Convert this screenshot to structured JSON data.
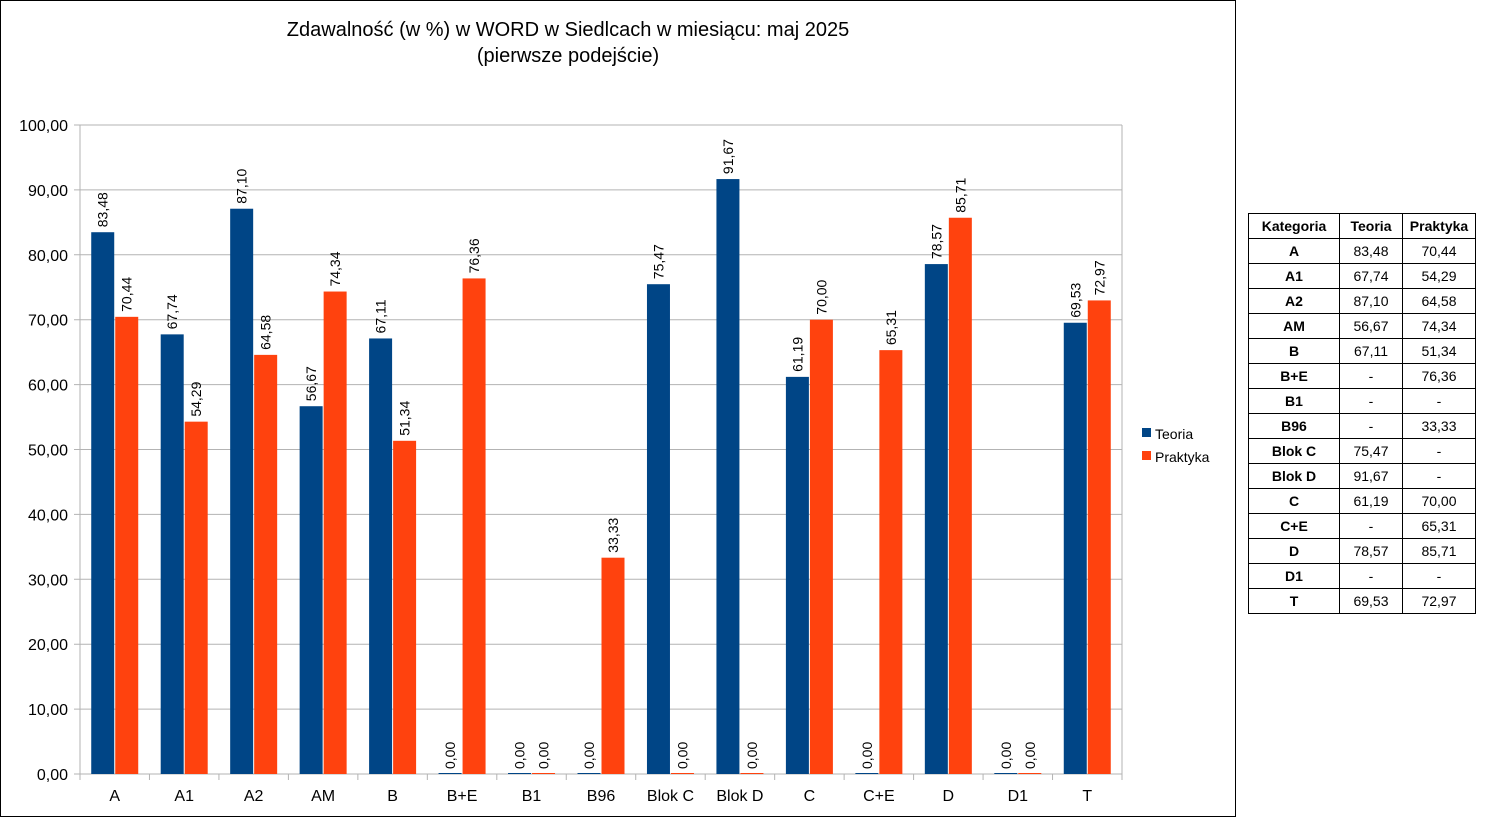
{
  "chart_data": {
    "type": "bar",
    "title": [
      "Zdawalność (w %) w WORD w Siedlcach w miesiącu: maj 2025",
      "(pierwsze podejście)"
    ],
    "categories": [
      "A",
      "A1",
      "A2",
      "AM",
      "B",
      "B+E",
      "B1",
      "B96",
      "Blok C",
      "Blok D",
      "C",
      "C+E",
      "D",
      "D1",
      "T"
    ],
    "series": [
      {
        "name": "Teoria",
        "color": "#004586",
        "values": [
          83.48,
          67.74,
          87.1,
          56.67,
          67.11,
          0.0,
          0.0,
          0.0,
          75.47,
          91.67,
          61.19,
          0.0,
          78.57,
          0.0,
          69.53
        ],
        "labels": [
          "83,48",
          "67,74",
          "87,10",
          "56,67",
          "67,11",
          "0,00",
          "0,00",
          "0,00",
          "75,47",
          "91,67",
          "61,19",
          "0,00",
          "78,57",
          "0,00",
          "69,53"
        ]
      },
      {
        "name": "Praktyka",
        "color": "#ff420e",
        "values": [
          70.44,
          54.29,
          64.58,
          74.34,
          51.34,
          76.36,
          0.0,
          33.33,
          0.0,
          0.0,
          70.0,
          65.31,
          85.71,
          0.0,
          72.97
        ],
        "labels": [
          "70,44",
          "54,29",
          "64,58",
          "74,34",
          "51,34",
          "76,36",
          "0,00",
          "33,33",
          "0,00",
          "0,00",
          "70,00",
          "65,31",
          "85,71",
          "0,00",
          "72,97"
        ]
      }
    ],
    "ylim": [
      0,
      100
    ],
    "yticks": [
      "0,00",
      "10,00",
      "20,00",
      "30,00",
      "40,00",
      "50,00",
      "60,00",
      "70,00",
      "80,00",
      "90,00",
      "100,00"
    ],
    "grid": true,
    "gridcolor": "#b3b3b3",
    "legend": "right"
  },
  "table": {
    "headers": [
      "Kategoria",
      "Teoria",
      "Praktyka"
    ],
    "rows": [
      [
        "A",
        "83,48",
        "70,44"
      ],
      [
        "A1",
        "67,74",
        "54,29"
      ],
      [
        "A2",
        "87,10",
        "64,58"
      ],
      [
        "AM",
        "56,67",
        "74,34"
      ],
      [
        "B",
        "67,11",
        "51,34"
      ],
      [
        "B+E",
        "-",
        "76,36"
      ],
      [
        "B1",
        "-",
        "-"
      ],
      [
        "B96",
        "-",
        "33,33"
      ],
      [
        "Blok C",
        "75,47",
        "-"
      ],
      [
        "Blok D",
        "91,67",
        "-"
      ],
      [
        "C",
        "61,19",
        "70,00"
      ],
      [
        "C+E",
        "-",
        "65,31"
      ],
      [
        "D",
        "78,57",
        "85,71"
      ],
      [
        "D1",
        "-",
        "-"
      ],
      [
        "T",
        "69,53",
        "72,97"
      ]
    ]
  }
}
